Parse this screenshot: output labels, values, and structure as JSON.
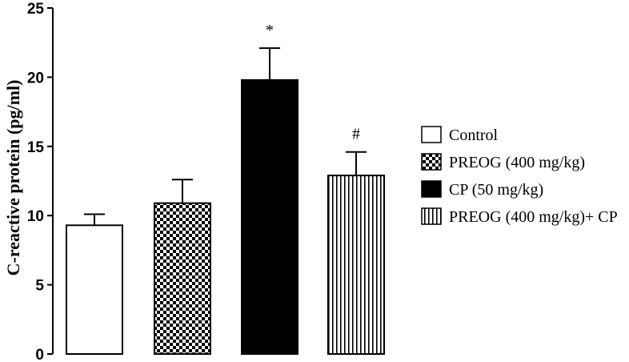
{
  "chart_data": {
    "type": "bar",
    "categories": [
      "Control",
      "PREOG (400 mg/kg)",
      "CP (50 mg/kg)",
      "PREOG (400 mg/kg)+ CP"
    ],
    "values": [
      9.3,
      10.9,
      19.8,
      12.9
    ],
    "errors": [
      0.8,
      1.7,
      2.3,
      1.7
    ],
    "annotations": [
      "",
      "",
      "*",
      "#"
    ],
    "fills": [
      "white",
      "checker",
      "black",
      "vstripes"
    ],
    "title": "",
    "xlabel": "",
    "ylabel": "C-reactive protein (pg/ml)",
    "ylim": [
      0,
      25
    ],
    "yticks": [
      0,
      5,
      10,
      15,
      20,
      25
    ],
    "legend_position": "right",
    "grid": false
  }
}
